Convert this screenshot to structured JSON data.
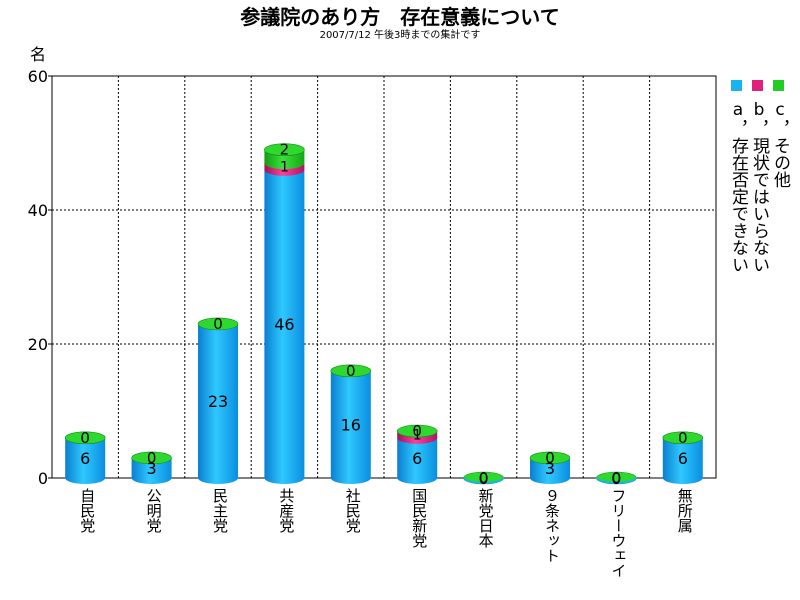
{
  "chart_data": {
    "type": "bar",
    "title": "参議院のあり方　存在意義について",
    "subtitle": "2007/7/12 午後3時までの集計です",
    "ylabel": "名",
    "ylim": [
      0,
      60
    ],
    "yticks": [
      0,
      20,
      40,
      60
    ],
    "grid": true,
    "stacked": true,
    "legend_position": "right",
    "categories": [
      "自民党",
      "公明党",
      "民主党",
      "共産党",
      "社民党",
      "国民新党",
      "新党日本",
      "９条ネット",
      "フリーウェイ",
      "無所属"
    ],
    "series": [
      {
        "name": "a，存在否定できない",
        "color": "#19b4f0",
        "values": [
          6,
          3,
          23,
          46,
          16,
          6,
          0,
          3,
          0,
          6
        ]
      },
      {
        "name": "b，現状ではいらない",
        "color": "#e0207a",
        "values": [
          0,
          0,
          0,
          1,
          0,
          1,
          0,
          0,
          0,
          0
        ]
      },
      {
        "name": "c，その他",
        "color": "#22cc22",
        "values": [
          0,
          0,
          0,
          2,
          0,
          0,
          0,
          0,
          0,
          0
        ]
      }
    ]
  }
}
